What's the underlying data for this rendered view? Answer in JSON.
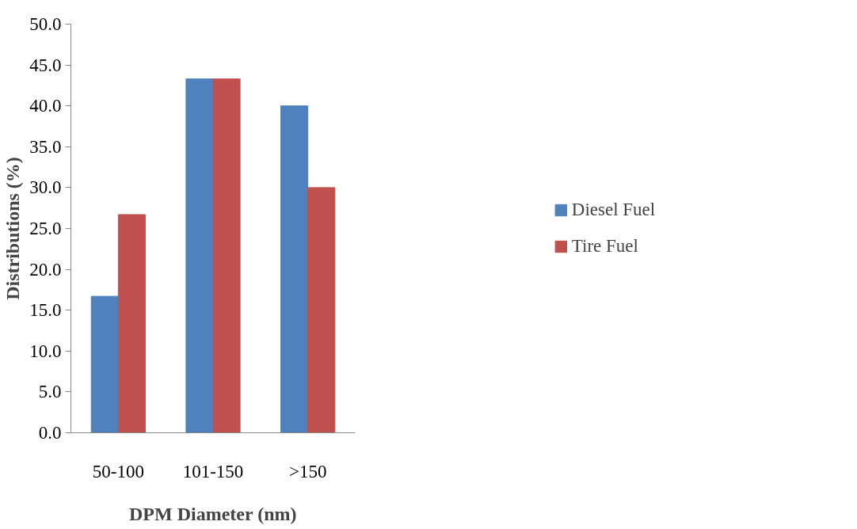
{
  "chart_data": {
    "type": "bar",
    "xlabel": "DPM Diameter (nm)",
    "ylabel": "Distributions (%)",
    "categories": [
      "50-100",
      "101-150",
      ">150"
    ],
    "series": [
      {
        "name": "Diesel Fuel",
        "color": "#4f81bd",
        "values": [
          16.7,
          43.3,
          40.0
        ]
      },
      {
        "name": "Tire Fuel",
        "color": "#c0504d",
        "values": [
          26.7,
          43.3,
          30.0
        ]
      }
    ],
    "ylim": [
      0,
      50
    ],
    "yticks": [
      {
        "value": 0,
        "label": "0.0"
      },
      {
        "value": 5,
        "label": "5.0"
      },
      {
        "value": 10,
        "label": "10.0"
      },
      {
        "value": 15,
        "label": "15.0"
      },
      {
        "value": 20,
        "label": "20.0"
      },
      {
        "value": 25,
        "label": "25.0"
      },
      {
        "value": 30,
        "label": "30.0"
      },
      {
        "value": 35,
        "label": "35.0"
      },
      {
        "value": 40,
        "label": "40.0"
      },
      {
        "value": 45,
        "label": "45.0"
      },
      {
        "value": 50,
        "label": "50.0"
      }
    ],
    "grid": false,
    "legend": "right"
  }
}
